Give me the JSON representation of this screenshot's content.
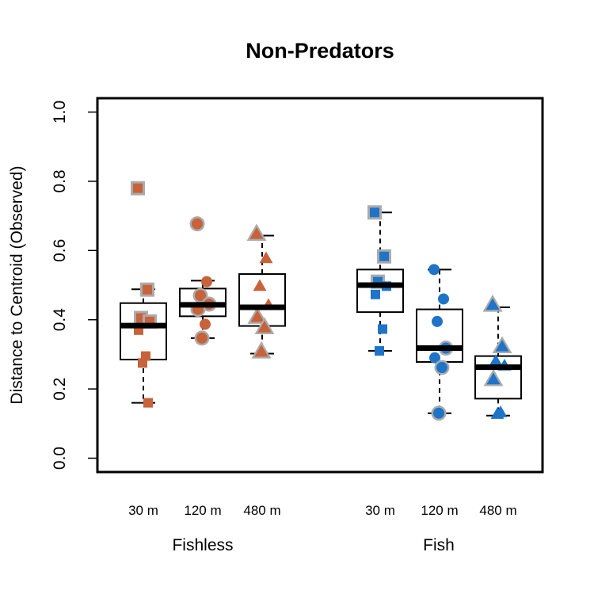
{
  "chart_data": {
    "type": "boxplot",
    "title": "Non-Predators",
    "ylabel": "Distance to Centroid (Observed)",
    "xlabel": "",
    "ylim": [
      -0.04,
      1.04
    ],
    "yticks": [
      0.0,
      0.2,
      0.4,
      0.6,
      0.8,
      1.0
    ],
    "ytick_labels": [
      "0.0",
      "0.2",
      "0.4",
      "0.6",
      "0.8",
      "1.0"
    ],
    "grid": false,
    "colors": {
      "fishless": "#C8623A",
      "fish": "#1F74C8",
      "outline": "#ABABAB"
    },
    "groups": [
      {
        "name": "Fishless",
        "color": "#C8623A",
        "boxes": [
          {
            "label": "30 m",
            "shape": "square",
            "whisker_low": 0.16,
            "q1": 0.285,
            "median": 0.383,
            "q3": 0.448,
            "whisker_high": 0.488,
            "points": [
              {
                "y": 0.78,
                "outlined": true
              },
              {
                "y": 0.487,
                "outlined": true
              },
              {
                "y": 0.405,
                "outlined": true
              },
              {
                "y": 0.395,
                "outlined": true
              },
              {
                "y": 0.37,
                "outlined": false
              },
              {
                "y": 0.295,
                "outlined": false
              },
              {
                "y": 0.275,
                "outlined": false
              },
              {
                "y": 0.16,
                "outlined": false
              }
            ]
          },
          {
            "label": "120 m",
            "shape": "circle",
            "whisker_low": 0.347,
            "q1": 0.41,
            "median": 0.443,
            "q3": 0.49,
            "whisker_high": 0.513,
            "points": [
              {
                "y": 0.677,
                "outlined": true
              },
              {
                "y": 0.51,
                "outlined": false
              },
              {
                "y": 0.47,
                "outlined": true
              },
              {
                "y": 0.445,
                "outlined": true
              },
              {
                "y": 0.43,
                "outlined": true
              },
              {
                "y": 0.387,
                "outlined": false
              },
              {
                "y": 0.347,
                "outlined": true
              }
            ]
          },
          {
            "label": "480 m",
            "shape": "triangle",
            "whisker_low": 0.302,
            "q1": 0.382,
            "median": 0.436,
            "q3": 0.532,
            "whisker_high": 0.643,
            "points": [
              {
                "y": 0.645,
                "outlined": true
              },
              {
                "y": 0.575,
                "outlined": false
              },
              {
                "y": 0.495,
                "outlined": false
              },
              {
                "y": 0.44,
                "outlined": false
              },
              {
                "y": 0.405,
                "outlined": true
              },
              {
                "y": 0.375,
                "outlined": true
              },
              {
                "y": 0.305,
                "outlined": true
              }
            ]
          }
        ]
      },
      {
        "name": "Fish",
        "color": "#1F74C8",
        "boxes": [
          {
            "label": "30 m",
            "shape": "square",
            "whisker_low": 0.31,
            "q1": 0.422,
            "median": 0.5,
            "q3": 0.545,
            "whisker_high": 0.71,
            "points": [
              {
                "y": 0.71,
                "outlined": true
              },
              {
                "y": 0.583,
                "outlined": true
              },
              {
                "y": 0.51,
                "outlined": true
              },
              {
                "y": 0.497,
                "outlined": false
              },
              {
                "y": 0.473,
                "outlined": false
              },
              {
                "y": 0.373,
                "outlined": false
              },
              {
                "y": 0.31,
                "outlined": false
              }
            ]
          },
          {
            "label": "120 m",
            "shape": "circle",
            "whisker_low": 0.13,
            "q1": 0.278,
            "median": 0.318,
            "q3": 0.43,
            "whisker_high": 0.545,
            "points": [
              {
                "y": 0.545,
                "outlined": false
              },
              {
                "y": 0.46,
                "outlined": false
              },
              {
                "y": 0.395,
                "outlined": false
              },
              {
                "y": 0.318,
                "outlined": true
              },
              {
                "y": 0.29,
                "outlined": false
              },
              {
                "y": 0.262,
                "outlined": true
              },
              {
                "y": 0.13,
                "outlined": true
              }
            ]
          },
          {
            "label": "480 m",
            "shape": "triangle",
            "whisker_low": 0.123,
            "q1": 0.172,
            "median": 0.263,
            "q3": 0.295,
            "whisker_high": 0.436,
            "points": [
              {
                "y": 0.44,
                "outlined": true
              },
              {
                "y": 0.32,
                "outlined": true
              },
              {
                "y": 0.278,
                "outlined": false
              },
              {
                "y": 0.265,
                "outlined": false
              },
              {
                "y": 0.225,
                "outlined": true
              },
              {
                "y": 0.13,
                "outlined": false
              },
              {
                "y": 0.125,
                "outlined": false
              }
            ]
          }
        ]
      }
    ]
  }
}
